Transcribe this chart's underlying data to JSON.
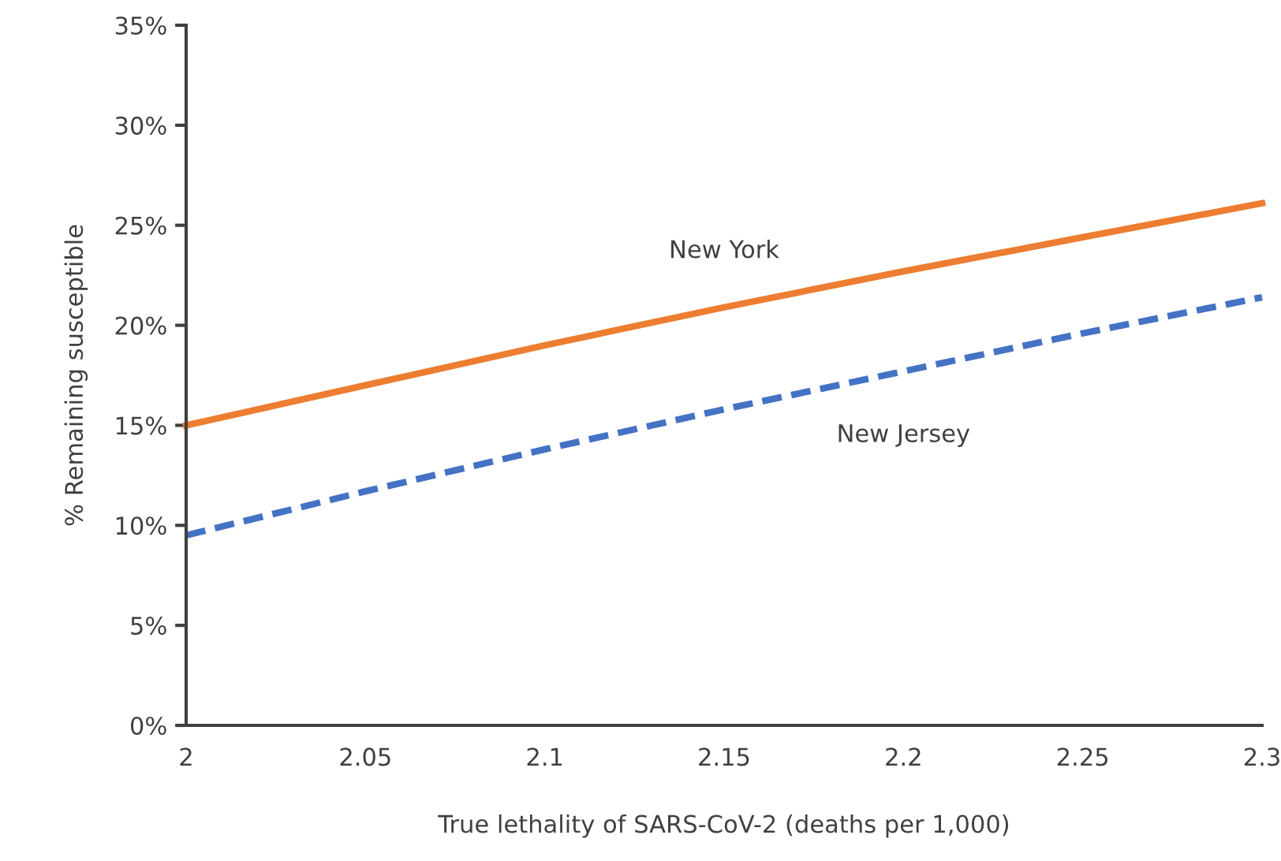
{
  "chart_data": {
    "type": "line",
    "xlabel": "True lethality of SARS-CoV-2 (deaths per 1,000)",
    "ylabel": "% Remaining susceptible",
    "x": [
      2,
      2.05,
      2.1,
      2.15,
      2.2,
      2.25,
      2.3
    ],
    "series": [
      {
        "name": "New York",
        "color": "#ed7d31",
        "line_style": "solid",
        "values": [
          15.0,
          17.0,
          19.0,
          20.9,
          22.7,
          24.4,
          26.1
        ]
      },
      {
        "name": "New Jersey",
        "color": "#4472c4",
        "line_style": "dashed",
        "values": [
          9.5,
          11.7,
          13.8,
          15.8,
          17.7,
          19.6,
          21.4
        ]
      }
    ],
    "xlim": [
      2,
      2.3
    ],
    "xticks": [
      2,
      2.05,
      2.1,
      2.15,
      2.2,
      2.25,
      2.3
    ],
    "ylim": [
      0,
      35
    ],
    "yticks": [
      {
        "value": 0,
        "label": "0%"
      },
      {
        "value": 5,
        "label": "5%"
      },
      {
        "value": 10,
        "label": "10%"
      },
      {
        "value": 15,
        "label": "15%"
      },
      {
        "value": 20,
        "label": "20%"
      },
      {
        "value": 25,
        "label": "25%"
      },
      {
        "value": 30,
        "label": "30%"
      },
      {
        "value": 35,
        "label": "35%"
      }
    ],
    "grid": false,
    "legend": false
  }
}
